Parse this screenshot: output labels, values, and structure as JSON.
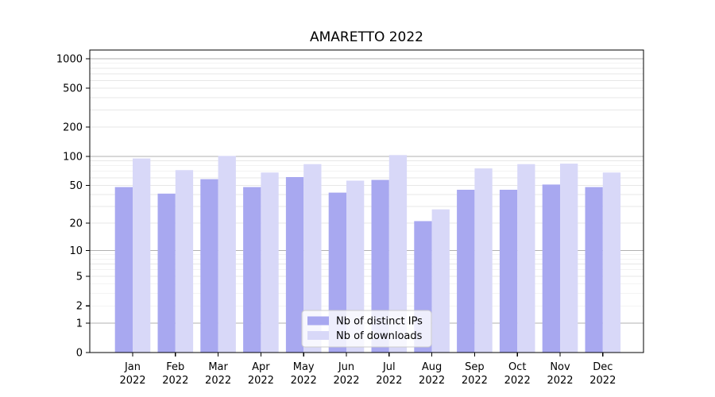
{
  "chart_data": {
    "type": "bar",
    "title": "AMARETTO 2022",
    "categories": [
      "Jan",
      "Feb",
      "Mar",
      "Apr",
      "May",
      "Jun",
      "Jul",
      "Aug",
      "Sep",
      "Oct",
      "Nov",
      "Dec"
    ],
    "year_label": "2022",
    "series": [
      {
        "name": "Nb of distinct IPs",
        "color": "#a8a8f0",
        "values": [
          48,
          41,
          58,
          48,
          61,
          42,
          57,
          21,
          45,
          45,
          51,
          48
        ]
      },
      {
        "name": "Nb of downloads",
        "color": "#d8d8f8",
        "values": [
          95,
          72,
          101,
          68,
          83,
          56,
          103,
          28,
          75,
          83,
          84,
          68
        ]
      }
    ],
    "y_axis": {
      "scale": "log1p",
      "ticks": [
        0,
        1,
        2,
        5,
        10,
        20,
        50,
        100,
        200,
        500,
        1000
      ],
      "tick_labels": [
        "0",
        "1",
        "2",
        "5",
        "10",
        "20",
        "50",
        "100",
        "200",
        "500",
        "1000"
      ],
      "ylim": [
        0,
        1000
      ]
    },
    "grid": {
      "major_color": "#b0b0b0",
      "minor_color": "#e7e7e7"
    },
    "legend": {
      "position": "inside-bottom-center",
      "background": "#ffffff",
      "border_color": "#cccccc"
    }
  }
}
